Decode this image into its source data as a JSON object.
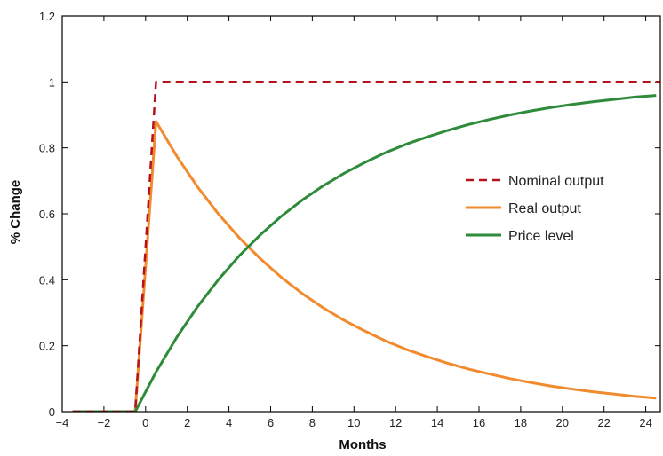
{
  "chart_data": {
    "type": "line",
    "xlabel": "Months",
    "ylabel": "% Change",
    "xlim": [
      -4,
      24.7
    ],
    "ylim": [
      0,
      1.2
    ],
    "x_ticks": [
      -4,
      -2,
      0,
      2,
      4,
      6,
      8,
      10,
      12,
      14,
      16,
      18,
      20,
      22,
      24
    ],
    "y_ticks": [
      0,
      0.2,
      0.4,
      0.6,
      0.8,
      1,
      1.2
    ],
    "x_tick_labels": [
      "−4",
      "−2",
      "0",
      "2",
      "4",
      "6",
      "8",
      "10",
      "12",
      "14",
      "16",
      "18",
      "20",
      "22",
      "24"
    ],
    "y_tick_labels": [
      "0",
      "0.2",
      "0.4",
      "0.6",
      "0.8",
      "1",
      "1.2"
    ],
    "grid": false,
    "legend_position": "right",
    "series": [
      {
        "name": "Nominal output",
        "color": "#b5121b",
        "dash": "dashed",
        "x": [
          -3.5,
          -0.5,
          0.5,
          24.7
        ],
        "y": [
          0,
          0,
          1.0,
          1.0
        ]
      },
      {
        "name": "Real output",
        "color": "#f28a2e",
        "dash": "solid",
        "x": [
          -3.5,
          -0.5,
          0.5,
          1.5,
          2.5,
          3.5,
          4.5,
          5.5,
          6.5,
          7.5,
          8.5,
          9.5,
          10.5,
          11.5,
          12.5,
          13.5,
          14.5,
          15.5,
          16.5,
          17.5,
          18.5,
          19.5,
          20.5,
          21.5,
          22.5,
          23.5,
          24.5
        ],
        "y": [
          0,
          0,
          0.88,
          0.774,
          0.681,
          0.599,
          0.527,
          0.464,
          0.408,
          0.359,
          0.316,
          0.278,
          0.245,
          0.215,
          0.189,
          0.167,
          0.147,
          0.129,
          0.114,
          0.1,
          0.088,
          0.077,
          0.068,
          0.06,
          0.053,
          0.046,
          0.041
        ]
      },
      {
        "name": "Price level",
        "color": "#2e8b3a",
        "dash": "solid",
        "x": [
          -3.5,
          -0.5,
          0.5,
          1.5,
          2.5,
          3.5,
          4.5,
          5.5,
          6.5,
          7.5,
          8.5,
          9.5,
          10.5,
          11.5,
          12.5,
          13.5,
          14.5,
          15.5,
          16.5,
          17.5,
          18.5,
          19.5,
          20.5,
          21.5,
          22.5,
          23.5,
          24.5
        ],
        "y": [
          0,
          0,
          0.12,
          0.226,
          0.319,
          0.401,
          0.473,
          0.536,
          0.592,
          0.641,
          0.684,
          0.722,
          0.755,
          0.785,
          0.811,
          0.833,
          0.853,
          0.871,
          0.886,
          0.9,
          0.912,
          0.923,
          0.932,
          0.94,
          0.947,
          0.954,
          0.959
        ]
      }
    ]
  }
}
